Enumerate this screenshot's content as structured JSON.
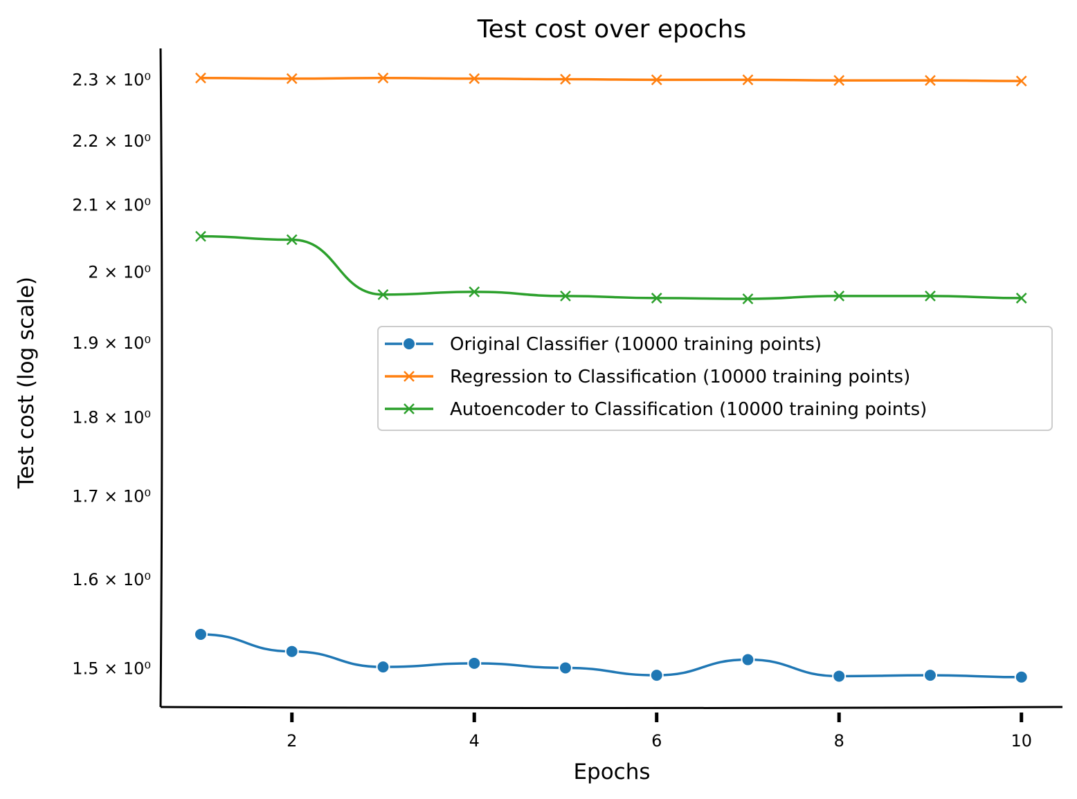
{
  "chart_data": {
    "type": "line",
    "title": "Test cost over epochs",
    "xlabel": "Epochs",
    "ylabel": "Test cost (log scale)",
    "yscale": "log",
    "xlim": [
      0.56,
      10.45
    ],
    "ylim": [
      1.458,
      2.352
    ],
    "grid": false,
    "legend_placement": "center-right",
    "x": [
      1,
      2,
      3,
      4,
      5,
      6,
      7,
      8,
      9,
      10
    ],
    "xticks": [
      2,
      4,
      6,
      8,
      10
    ],
    "xtick_labels": [
      "2",
      "4",
      "6",
      "8",
      "10"
    ],
    "yticks": [
      1.5,
      1.6,
      1.7,
      1.8,
      1.9,
      2.0,
      2.1,
      2.2,
      2.3
    ],
    "ytick_labels": [
      "1.5 × 10⁰",
      "1.6 × 10⁰",
      "1.7 × 10⁰",
      "1.8 × 10⁰",
      "1.9 × 10⁰",
      "2 × 10⁰",
      "2.1 × 10⁰",
      "2.2 × 10⁰",
      "2.3 × 10⁰"
    ],
    "series": [
      {
        "name": "Original Classifier (10000 training points)",
        "color": "#1f77b4",
        "marker": "circle",
        "values": [
          1.537,
          1.518,
          1.501,
          1.505,
          1.5,
          1.492,
          1.509,
          1.491,
          1.492,
          1.49
        ]
      },
      {
        "name": "Regression to Classification (10000 training points)",
        "color": "#ff7f0e",
        "marker": "x",
        "values": [
          2.302,
          2.301,
          2.302,
          2.301,
          2.3,
          2.299,
          2.299,
          2.298,
          2.298,
          2.297
        ]
      },
      {
        "name": "Autoencoder to Classification (10000 training points)",
        "color": "#2ca02c",
        "marker": "x",
        "values": [
          2.052,
          2.047,
          1.967,
          1.971,
          1.965,
          1.962,
          1.961,
          1.965,
          1.965,
          1.962
        ]
      }
    ]
  }
}
